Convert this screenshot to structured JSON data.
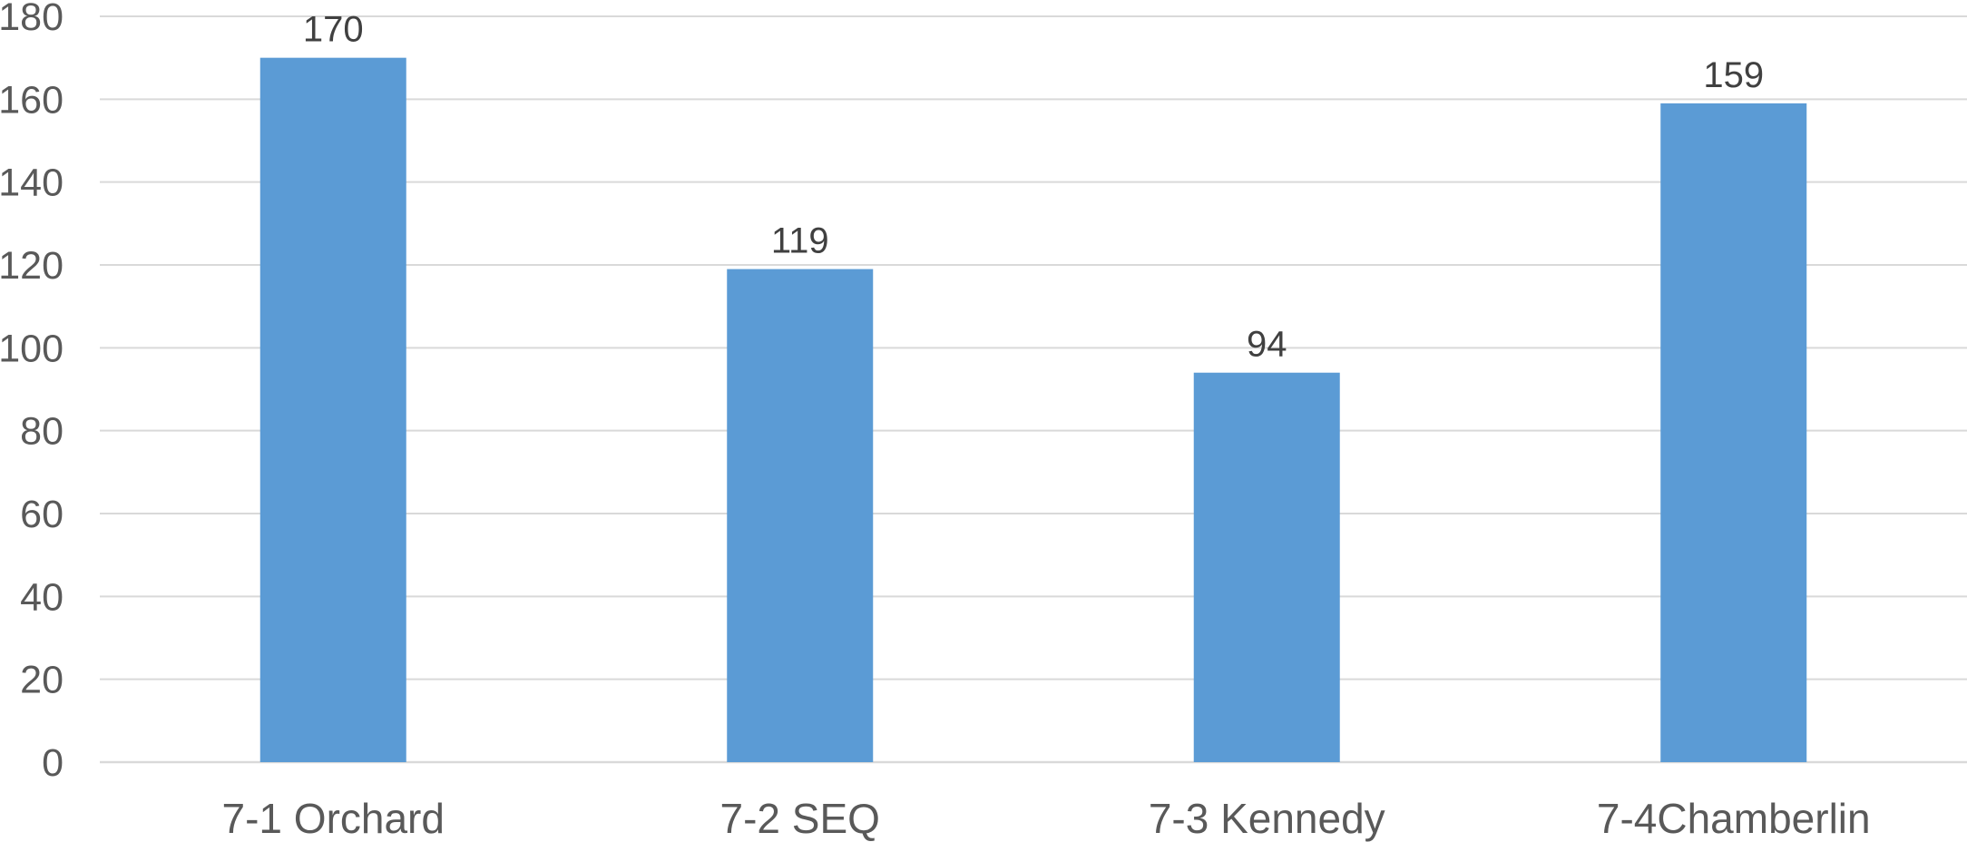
{
  "chart_data": {
    "type": "bar",
    "title": "",
    "xlabel": "",
    "ylabel": "",
    "categories": [
      "7-1 Orchard",
      "7-2 SEQ",
      "7-3 Kennedy",
      "7-4Chamberlin"
    ],
    "values": [
      170,
      119,
      94,
      159
    ],
    "data_labels": [
      "170",
      "119",
      "94",
      "159"
    ],
    "ylim": [
      0,
      180
    ],
    "y_ticks": [
      0,
      20,
      40,
      60,
      80,
      100,
      120,
      140,
      160,
      180
    ],
    "y_tick_labels": [
      "0",
      "20",
      "40",
      "60",
      "80",
      "100",
      "120",
      "140",
      "160",
      "180"
    ],
    "grid": true,
    "legend": "none",
    "bar_color": "#5B9BD5",
    "grid_color": "#D9D9D9",
    "axis_label_color": "#595959",
    "data_label_color": "#404040"
  }
}
